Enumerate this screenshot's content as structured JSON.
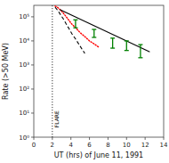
{
  "chart_data": {
    "type": "line",
    "title": "",
    "xlabel": "UT (hrs) of June 11, 1991",
    "ylabel": "Rate (>50 MeV)",
    "log": "y",
    "grid": false,
    "xlim": [
      0,
      14
    ],
    "ylim": [
      1,
      300000
    ],
    "xticks": [
      0,
      2,
      4,
      6,
      8,
      10,
      12,
      14
    ],
    "yticks": [
      {
        "value": 1,
        "label": "10⁰"
      },
      {
        "value": 10,
        "label": "10¹"
      },
      {
        "value": 100,
        "label": "10²"
      },
      {
        "value": 1000,
        "label": "10³"
      },
      {
        "value": 10000,
        "label": "10⁴"
      },
      {
        "value": 100000,
        "label": "10⁵"
      }
    ],
    "annotations": [
      {
        "type": "vline",
        "x": 2.0,
        "y": 2.5,
        "text": "FLARE",
        "color": "black",
        "line_style": "dotted"
      }
    ],
    "series": [
      {
        "type": "line",
        "color": "red",
        "line_style": "dotted",
        "x": [
          2.3,
          2.6,
          2.9,
          3.2,
          3.5,
          3.8,
          4.1,
          4.5,
          5.0,
          5.5,
          6.0,
          6.5,
          7.0
        ],
        "values": [
          280000,
          240000,
          190000,
          140000,
          100000,
          70000,
          50000,
          35000,
          22000,
          15000,
          10000,
          7500,
          5500
        ]
      },
      {
        "type": "line",
        "color": "black",
        "line_style": "dashed",
        "x": [
          2.3,
          2.6,
          2.9,
          3.2,
          3.5,
          3.8,
          4.1,
          4.5,
          5.0,
          5.5
        ],
        "values": [
          250000,
          180000,
          120000,
          80000,
          50000,
          32000,
          20000,
          12000,
          6000,
          3000
        ]
      },
      {
        "type": "line",
        "color": "black",
        "line_style": "solid",
        "x": [
          2.8,
          12.5
        ],
        "values": [
          200000,
          3500
        ]
      },
      {
        "type": "errorbar",
        "color": "green",
        "x": [
          4.5,
          6.5,
          8.5,
          10.0,
          11.5
        ],
        "values": [
          55000,
          22000,
          9000,
          7000,
          4500
        ],
        "error_low": [
          20000,
          8000,
          4000,
          3000,
          2500
        ],
        "error_high": [
          20000,
          8000,
          4000,
          3000,
          2500
        ]
      }
    ]
  }
}
